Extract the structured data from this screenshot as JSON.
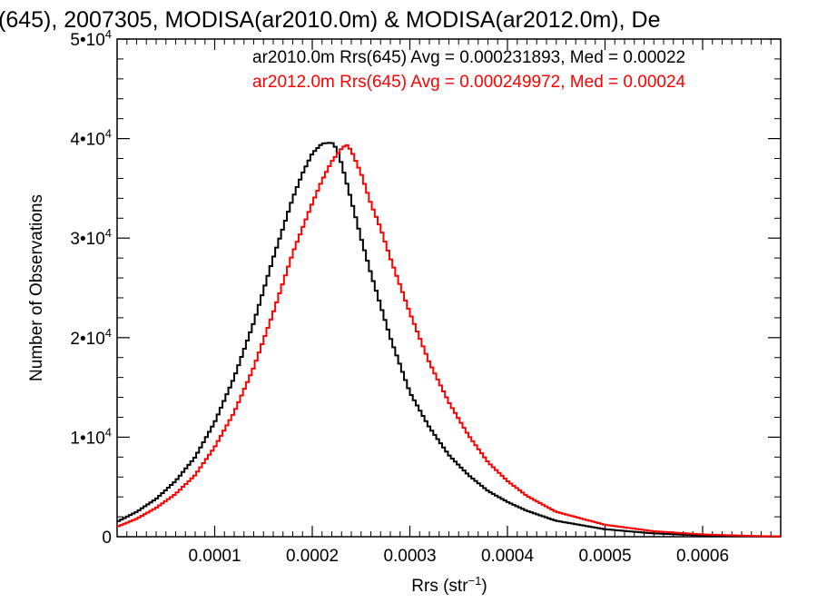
{
  "chart_data": {
    "type": "line",
    "title": "(645), 2007305, MODISA(ar2010.0m) & MODISA(ar2012.0m), De",
    "xlabel": "Rrs (str",
    "xlabel_sup": "−1",
    "xlabel_end": ")",
    "ylabel": "Number of Observations",
    "xlim": [
      0.0,
      0.00068
    ],
    "ylim": [
      0,
      50000
    ],
    "xticks": [
      0.0001,
      0.0002,
      0.0003,
      0.0004,
      0.0005,
      0.0006
    ],
    "xtick_labels": [
      "0.0001",
      "0.0002",
      "0.0003",
      "0.0004",
      "0.0005",
      "0.0006"
    ],
    "yticks": [
      {
        "value": 0,
        "mantissa": "0",
        "exponent": ""
      },
      {
        "value": 10000,
        "mantissa": "1•10",
        "exponent": "4"
      },
      {
        "value": 20000,
        "mantissa": "2•10",
        "exponent": "4"
      },
      {
        "value": 30000,
        "mantissa": "3•10",
        "exponent": "4"
      },
      {
        "value": 40000,
        "mantissa": "4•10",
        "exponent": "4"
      },
      {
        "value": 50000,
        "mantissa": "5•10",
        "exponent": "4"
      }
    ],
    "grid": false,
    "legend_placement": "top-right",
    "series": [
      {
        "name": "ar2010.0m Rrs(645) Avg = 0.000231893, Med = 0.00022",
        "color": "#000000",
        "x": [
          0.0,
          2e-05,
          4e-05,
          6e-05,
          8e-05,
          0.0001,
          0.00012,
          0.00014,
          0.00016,
          0.00018,
          0.00019,
          0.0002,
          0.00021,
          0.00022,
          0.000225,
          0.00023,
          0.00024,
          0.00025,
          0.00026,
          0.00028,
          0.0003,
          0.00032,
          0.00034,
          0.00036,
          0.00038,
          0.0004,
          0.00042,
          0.00045,
          0.0005,
          0.00055,
          0.0006,
          0.00065,
          0.00068
        ],
        "y": [
          1500,
          2500,
          3800,
          5600,
          8000,
          11500,
          16000,
          21500,
          28000,
          34000,
          36500,
          38500,
          39500,
          39600,
          39000,
          37500,
          33800,
          30000,
          26500,
          20000,
          14500,
          11000,
          8200,
          6200,
          4600,
          3500,
          2600,
          1600,
          750,
          330,
          130,
          40,
          20
        ]
      },
      {
        "name": "ar2012.0m Rrs(645) Avg = 0.000249972, Med = 0.00024",
        "color": "#ff0000",
        "x": [
          0.0,
          2e-05,
          4e-05,
          6e-05,
          8e-05,
          0.0001,
          0.00012,
          0.00014,
          0.00016,
          0.00018,
          0.0002,
          0.00021,
          0.00022,
          0.00023,
          0.000235,
          0.00024,
          0.00025,
          0.00026,
          0.00027,
          0.00028,
          0.0003,
          0.00032,
          0.00034,
          0.00036,
          0.00038,
          0.0004,
          0.00042,
          0.00045,
          0.0005,
          0.00055,
          0.0006,
          0.00065,
          0.00068
        ],
        "y": [
          1000,
          1800,
          2900,
          4300,
          6200,
          9000,
          12500,
          17000,
          22500,
          28500,
          33500,
          35800,
          37700,
          39000,
          39400,
          38800,
          36500,
          33500,
          31000,
          28000,
          22500,
          17500,
          13500,
          10200,
          7500,
          5600,
          4100,
          2500,
          1200,
          550,
          230,
          80,
          30
        ]
      }
    ]
  }
}
